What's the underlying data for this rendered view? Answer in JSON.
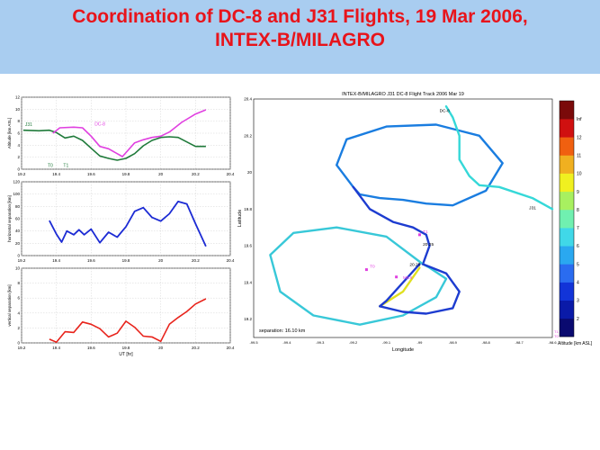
{
  "slide": {
    "title_line1": "Coordination of DC-8 and J31 Flights, 19 Mar 2006,",
    "title_line2": "INTEX-B/MILAGRO",
    "banner_color": "#a9cdf0",
    "title_color": "#e8141b"
  },
  "chart_data": [
    {
      "type": "line",
      "id": "altitude",
      "ylabel": "Altitude [km ASL]",
      "xlim": [
        19.2,
        20.4
      ],
      "ylim": [
        0,
        12
      ],
      "xticks": [
        19.2,
        19.4,
        19.6,
        19.8,
        20,
        20.2,
        20.4
      ],
      "xtick_labels": [
        "19.2",
        "19.4",
        "19.6",
        "19.8",
        "20",
        "20.2",
        "20.4"
      ],
      "yticks": [
        0,
        2,
        4,
        6,
        8,
        10,
        12
      ],
      "grid": true,
      "annotations": [
        {
          "text": "J31",
          "x": 19.22,
          "y": 7.2,
          "color": "#1f7a3a"
        },
        {
          "text": "DC-8",
          "x": 19.62,
          "y": 7.3,
          "color": "#e040e0"
        },
        {
          "text": "T0",
          "x": 19.35,
          "y": 0.4,
          "color": "#1f7a3a"
        },
        {
          "text": "T1",
          "x": 19.44,
          "y": 0.4,
          "color": "#1f7a3a"
        }
      ],
      "series": [
        {
          "name": "J31",
          "color": "#1f7a3a",
          "x": [
            19.21,
            19.3,
            19.36,
            19.4,
            19.45,
            19.5,
            19.55,
            19.6,
            19.65,
            19.7,
            19.75,
            19.8,
            19.85,
            19.9,
            19.95,
            20.0,
            20.05,
            20.1,
            20.2,
            20.26
          ],
          "y": [
            6.5,
            6.4,
            6.5,
            6.1,
            5.2,
            5.5,
            4.8,
            3.5,
            2.2,
            1.8,
            1.5,
            1.8,
            2.6,
            3.9,
            4.8,
            5.3,
            5.4,
            5.3,
            3.8,
            3.8
          ]
        },
        {
          "name": "DC-8",
          "color": "#e040e0",
          "x": [
            19.38,
            19.42,
            19.5,
            19.55,
            19.6,
            19.65,
            19.7,
            19.78,
            19.85,
            19.9,
            19.95,
            20.0,
            20.05,
            20.12,
            20.2,
            20.26
          ],
          "y": [
            6.0,
            6.9,
            7.0,
            6.9,
            5.5,
            3.8,
            3.4,
            2.1,
            4.4,
            4.9,
            5.3,
            5.5,
            6.2,
            7.8,
            9.2,
            9.9
          ]
        }
      ]
    },
    {
      "type": "line",
      "id": "horizontal",
      "ylabel": "horizontal separation [km]",
      "xlim": [
        19.2,
        20.4
      ],
      "ylim": [
        0,
        120
      ],
      "xticks": [
        19.2,
        19.4,
        19.6,
        19.8,
        20,
        20.2,
        20.4
      ],
      "xtick_labels": [
        "19.2",
        "19.4",
        "19.6",
        "19.8",
        "20",
        "20.2",
        "20.4"
      ],
      "yticks": [
        0,
        20,
        40,
        60,
        80,
        100,
        120
      ],
      "grid": true,
      "series": [
        {
          "name": "",
          "color": "#1c2bd4",
          "x": [
            19.36,
            19.4,
            19.43,
            19.46,
            19.5,
            19.53,
            19.56,
            19.6,
            19.65,
            19.7,
            19.75,
            19.8,
            19.85,
            19.9,
            19.95,
            20.0,
            20.05,
            20.1,
            20.15,
            20.2,
            20.26
          ],
          "y": [
            57,
            35,
            22,
            40,
            34,
            42,
            34,
            43,
            21,
            38,
            30,
            47,
            72,
            78,
            62,
            56,
            68,
            88,
            84,
            52,
            15
          ]
        }
      ]
    },
    {
      "type": "line",
      "id": "vertical",
      "ylabel": "vertical separation [km]",
      "xlabel": "UT [hr]",
      "xlim": [
        19.2,
        20.4
      ],
      "ylim": [
        0,
        10
      ],
      "xticks": [
        19.2,
        19.4,
        19.6,
        19.8,
        20,
        20.2,
        20.4
      ],
      "xtick_labels": [
        "19.2",
        "19.4",
        "19.6",
        "19.8",
        "20",
        "20.2",
        "20.4"
      ],
      "yticks": [
        0,
        2,
        4,
        6,
        8,
        10
      ],
      "grid": true,
      "series": [
        {
          "name": "",
          "color": "#e8231b",
          "x": [
            19.36,
            19.4,
            19.45,
            19.5,
            19.55,
            19.6,
            19.65,
            19.7,
            19.75,
            19.8,
            19.85,
            19.9,
            19.95,
            20.0,
            20.05,
            20.1,
            20.15,
            20.2,
            20.26
          ],
          "y": [
            0.5,
            0.1,
            1.5,
            1.4,
            2.8,
            2.5,
            1.9,
            0.8,
            1.3,
            2.9,
            2.1,
            0.9,
            0.8,
            0.2,
            2.5,
            3.4,
            4.2,
            5.2,
            5.9
          ]
        }
      ]
    },
    {
      "type": "line",
      "id": "map",
      "title": "INTEX-B/MILAGRO J31 DC-8 Flight Track  2006 Mar 19",
      "xlabel": "Longitude",
      "ylabel": "Latitude",
      "xlim": [
        -99.5,
        -98.6
      ],
      "ylim": [
        19.1,
        20.4
      ],
      "xticks": [
        -99.5,
        -99.4,
        -99.3,
        -99.2,
        -99.1,
        -99,
        -98.9,
        -98.8,
        -98.7,
        -98.6
      ],
      "xtick_labels": [
        "-99.5",
        "-99.4",
        "-99.3",
        "-99.2",
        "-99.1",
        "-99",
        "-98.9",
        "-98.8",
        "-98.7",
        "-98.6"
      ],
      "yticks": [
        19.2,
        19.4,
        19.6,
        19.8,
        20,
        20.2,
        20.4
      ],
      "ytick_labels": [
        "19.2",
        "19.4",
        "19.6",
        "19.8",
        "20",
        "20.2",
        "20.4"
      ],
      "grid": false,
      "annotations": [
        {
          "text": "DC-8",
          "x": -98.94,
          "y": 20.33,
          "color": "#000000"
        },
        {
          "text": "J31",
          "x": -98.67,
          "y": 19.8,
          "color": "#000000"
        },
        {
          "text": "T1",
          "x": -98.99,
          "y": 19.67,
          "color": "#e040e0"
        },
        {
          "text": "T0",
          "x": -99.15,
          "y": 19.48,
          "color": "#e040e0"
        },
        {
          "text": "20.25",
          "x": -98.99,
          "y": 19.6,
          "color": "#000000"
        },
        {
          "text": "20.25",
          "x": -99.03,
          "y": 19.49,
          "color": "#000000"
        },
        {
          "text": "MEX",
          "x": -99.05,
          "y": 19.42,
          "color": "#e040e0"
        }
      ],
      "points": [
        {
          "name": "T1",
          "x": -99.0,
          "y": 19.66,
          "color": "#e040e0"
        },
        {
          "name": "T0",
          "x": -99.16,
          "y": 19.47,
          "color": "#e040e0"
        },
        {
          "name": "MEX",
          "x": -99.07,
          "y": 19.43,
          "color": "#e040e0"
        }
      ],
      "separation_label": "separation: 16.10 km",
      "tracks": [
        {
          "name": "DC-8 north loop",
          "color": "#1a7de0",
          "x": [
            -99.2,
            -99.25,
            -99.22,
            -99.1,
            -98.95,
            -98.82,
            -98.75,
            -98.8,
            -98.9,
            -98.98,
            -99.05,
            -99.12,
            -99.18,
            -99.2
          ],
          "y": [
            19.92,
            20.04,
            20.18,
            20.25,
            20.26,
            20.2,
            20.05,
            19.9,
            19.82,
            19.83,
            19.85,
            19.86,
            19.88,
            19.92
          ]
        },
        {
          "name": "DC-8 inbound",
          "color": "#35d8d8",
          "x": [
            -98.92,
            -98.9,
            -98.88,
            -98.88,
            -98.85,
            -98.82,
            -98.76,
            -98.66,
            -98.6
          ],
          "y": [
            20.36,
            20.3,
            20.2,
            20.07,
            19.98,
            19.93,
            19.92,
            19.86,
            19.8
          ]
        },
        {
          "name": "J31 descent",
          "color": "#1d3cd0",
          "x": [
            -99.2,
            -99.15,
            -99.08,
            -99.02,
            -98.98,
            -98.97,
            -98.99
          ],
          "y": [
            19.92,
            19.8,
            19.73,
            19.7,
            19.66,
            19.6,
            19.5
          ]
        },
        {
          "name": "J31 south loop",
          "color": "#38c8d8",
          "x": [
            -98.99,
            -99.1,
            -99.25,
            -99.38,
            -99.45,
            -99.42,
            -99.32,
            -99.18,
            -99.05,
            -98.95,
            -98.92,
            -98.97,
            -98.99
          ],
          "y": [
            19.5,
            19.65,
            19.7,
            19.67,
            19.55,
            19.35,
            19.22,
            19.17,
            19.22,
            19.32,
            19.42,
            19.48,
            19.5
          ]
        },
        {
          "name": "J31 return",
          "color": "#e0e020",
          "x": [
            -99.0,
            -99.05,
            -99.12
          ],
          "y": [
            19.48,
            19.35,
            19.27
          ]
        },
        {
          "name": "J31 east loop",
          "color": "#1d3cd0",
          "x": [
            -98.99,
            -98.92,
            -98.88,
            -98.9,
            -98.98,
            -99.05,
            -99.12,
            -99.1,
            -99.0
          ],
          "y": [
            19.5,
            19.45,
            19.35,
            19.26,
            19.23,
            19.24,
            19.27,
            19.3,
            19.5
          ]
        }
      ]
    }
  ],
  "colorbar": {
    "label": "Altitude [km ASL]",
    "ticks": [
      "4",
      "3",
      "2",
      "5",
      "6",
      "7",
      "8",
      "9",
      "10",
      "11",
      "12",
      "Inf"
    ],
    "levels": [
      2,
      3,
      4,
      5,
      6,
      7,
      8,
      9,
      10,
      11,
      12,
      13
    ],
    "colors": [
      "#0a0a70",
      "#0a1aa8",
      "#1234d8",
      "#2a6cf0",
      "#2aa8f0",
      "#40d8e8",
      "#70f0b0",
      "#a8f060",
      "#f0f020",
      "#f0b020",
      "#f06010",
      "#d01010",
      "#7a0a0a"
    ],
    "marker_labels": [
      "T1",
      "T0"
    ]
  }
}
